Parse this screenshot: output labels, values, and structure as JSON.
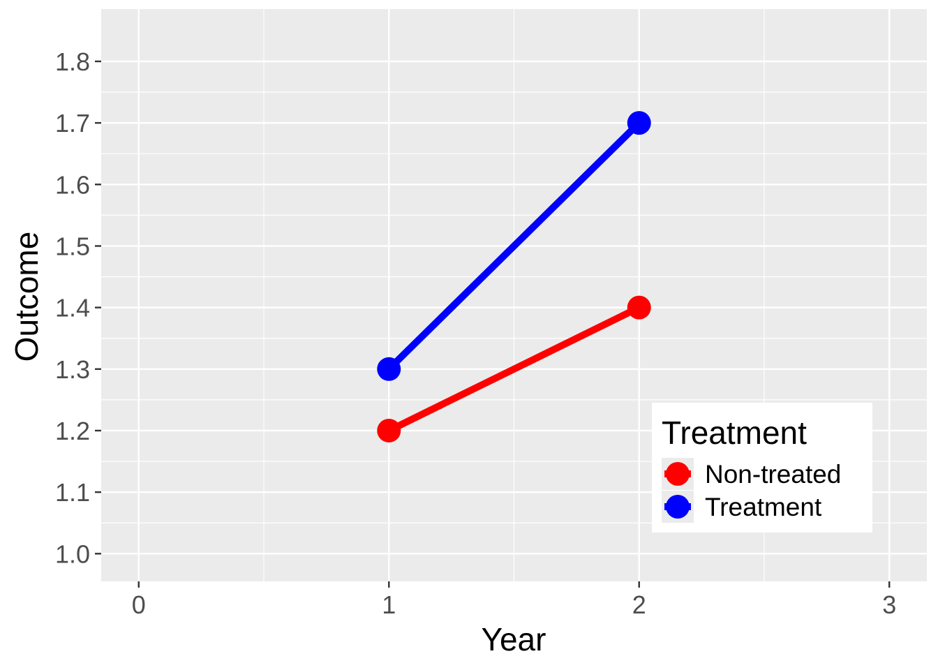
{
  "chart_data": {
    "type": "line",
    "xlabel": "Year",
    "ylabel": "Outcome",
    "xlim": [
      -0.15,
      3.15
    ],
    "ylim": [
      0.955,
      1.885
    ],
    "xticks": [
      0,
      1,
      2,
      3
    ],
    "yticks": [
      1.0,
      1.1,
      1.2,
      1.3,
      1.4,
      1.5,
      1.6,
      1.7,
      1.8
    ],
    "xtick_labels": [
      "0",
      "1",
      "2",
      "3"
    ],
    "ytick_labels": [
      "1.0",
      "1.1",
      "1.2",
      "1.3",
      "1.4",
      "1.5",
      "1.6",
      "1.7",
      "1.8"
    ],
    "grid": true,
    "legend": {
      "title": "Treatment",
      "position": "bottom-right inside"
    },
    "series": [
      {
        "name": "Non-treated",
        "color": "#ff0000",
        "x": [
          1,
          2
        ],
        "y": [
          1.2,
          1.4
        ]
      },
      {
        "name": "Treatment",
        "color": "#0000ff",
        "x": [
          1,
          2
        ],
        "y": [
          1.3,
          1.7
        ]
      }
    ]
  }
}
